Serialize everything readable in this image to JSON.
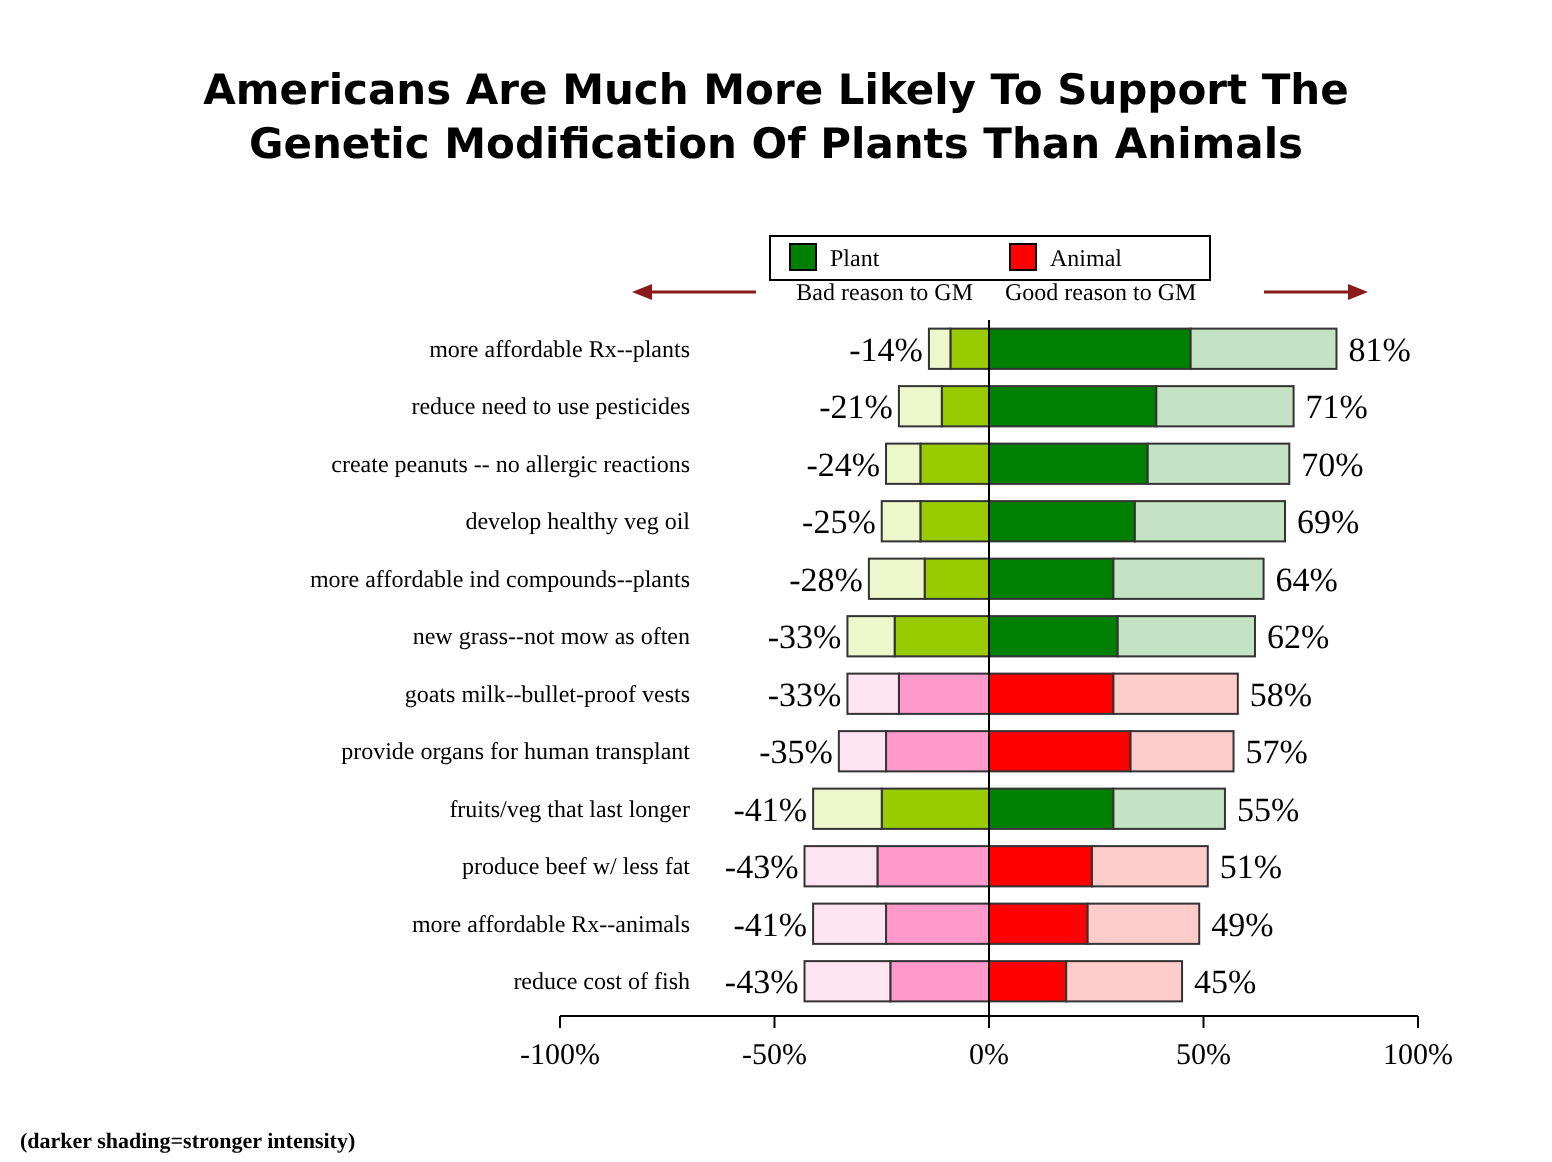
{
  "chart_data": {
    "type": "bar",
    "orientation": "horizontal",
    "stacked": true,
    "title": "Americans Are Much More Likely To Support The Genetic Modification Of Plants Than Animals",
    "categories": [
      "more affordable Rx--plants",
      "reduce need to use pesticides",
      "create peanuts  -- no allergic reactions",
      "develop healthy veg oil",
      "more affordable ind compounds--plants",
      "new grass--not mow as often",
      "goats milk--bullet-proof vests",
      "provide organs for human transplant",
      "fruits/veg that last longer",
      "produce beef w/ less fat",
      "more affordable Rx--animals",
      "reduce cost of fish"
    ],
    "series": [
      {
        "name": "Plant",
        "color": "#008000",
        "values": [
          47,
          39,
          37,
          34,
          29,
          30,
          null,
          null,
          29,
          null,
          null,
          null
        ]
      },
      {
        "name": "Animal",
        "color": "#ff0000",
        "values": [
          null,
          null,
          null,
          null,
          null,
          null,
          29,
          33,
          null,
          24,
          23,
          18
        ]
      },
      {
        "color": "#c4e2c4",
        "values": [
          34,
          32,
          33,
          35,
          35,
          32,
          null,
          null,
          26,
          null,
          null,
          null
        ]
      },
      {
        "color": "#ffcccc",
        "values": [
          null,
          null,
          null,
          null,
          null,
          null,
          29,
          24,
          null,
          27,
          26,
          27
        ]
      },
      {
        "color": "#99cc00",
        "values": [
          -9,
          -11,
          -16,
          -16,
          -15,
          -22,
          null,
          null,
          -25,
          null,
          null,
          null
        ]
      },
      {
        "color": "#ff99cc",
        "values": [
          null,
          null,
          null,
          null,
          null,
          null,
          -21,
          -24,
          null,
          -26,
          -24,
          -23
        ]
      },
      {
        "color": "#eef6cc",
        "values": [
          -5,
          -10,
          -8,
          -9,
          -13,
          -11,
          null,
          null,
          -16,
          null,
          null,
          null
        ]
      },
      {
        "color": "#ffe4f2",
        "values": [
          null,
          null,
          null,
          null,
          null,
          null,
          -12,
          -11,
          null,
          -17,
          -17,
          -20
        ]
      }
    ],
    "totals": [
      [
        "-14%",
        "81%"
      ],
      [
        "-21%",
        "71%"
      ],
      [
        "-24%",
        "70%"
      ],
      [
        "-25%",
        "69%"
      ],
      [
        "-28%",
        "64%"
      ],
      [
        "-33%",
        "62%"
      ],
      [
        "-33%",
        "58%"
      ],
      [
        "-35%",
        "57%"
      ],
      [
        "-41%",
        "55%"
      ],
      [
        "-43%",
        "51%"
      ],
      [
        "-41%",
        "49%"
      ],
      [
        "-43%",
        "45%"
      ]
    ],
    "xlim": [
      -100,
      100
    ],
    "xticks": [
      {
        "value": -100,
        "label": "-100%"
      },
      {
        "value": -50,
        "label": "-50%"
      },
      {
        "value": 0,
        "label": "0%"
      },
      {
        "value": 50,
        "label": "50%"
      },
      {
        "value": 100,
        "label": "100%"
      }
    ],
    "grid": false,
    "legend": "top",
    "ref_lines": [
      {
        "axis": "x",
        "value": 0,
        "color": "#000000"
      }
    ],
    "annotations": [
      "Bad reason to GM",
      "Good reason to GM",
      "(darker shading=stronger intensity)"
    ]
  }
}
